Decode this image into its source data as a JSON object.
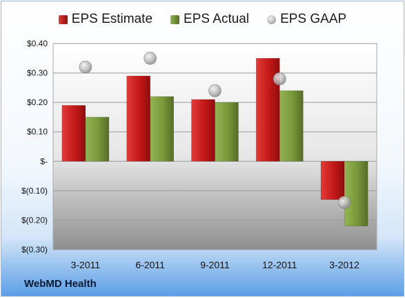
{
  "legend": {
    "estimate": "EPS Estimate",
    "actual": "EPS Actual",
    "gaap": "EPS GAAP"
  },
  "company": "WebMD Health",
  "colors": {
    "estimate": "#cc1f1f",
    "actual": "#7a9a3c",
    "gaap": "#b0b0b0"
  },
  "chart_data": {
    "type": "bar",
    "categories": [
      "3-2011",
      "6-2011",
      "9-2011",
      "12-2011",
      "3-2012"
    ],
    "series": [
      {
        "name": "EPS Estimate",
        "type": "bar",
        "values": [
          0.19,
          0.29,
          0.21,
          0.35,
          -0.13
        ]
      },
      {
        "name": "EPS Actual",
        "type": "bar",
        "values": [
          0.15,
          0.22,
          0.2,
          0.24,
          -0.22
        ]
      },
      {
        "name": "EPS GAAP",
        "type": "scatter",
        "values": [
          0.32,
          0.35,
          0.24,
          0.28,
          -0.14
        ]
      }
    ],
    "ylim": [
      -0.3,
      0.4
    ],
    "yticks": [
      {
        "value": 0.4,
        "label": "$0.40"
      },
      {
        "value": 0.3,
        "label": "$0.30"
      },
      {
        "value": 0.2,
        "label": "$0.20"
      },
      {
        "value": 0.1,
        "label": "$0.10"
      },
      {
        "value": 0.0,
        "label": "$-"
      },
      {
        "value": -0.1,
        "label": "$(0.10)"
      },
      {
        "value": -0.2,
        "label": "$(0.20)"
      },
      {
        "value": -0.3,
        "label": "$(0.30)"
      }
    ],
    "grid": true,
    "legend_position": "top"
  }
}
